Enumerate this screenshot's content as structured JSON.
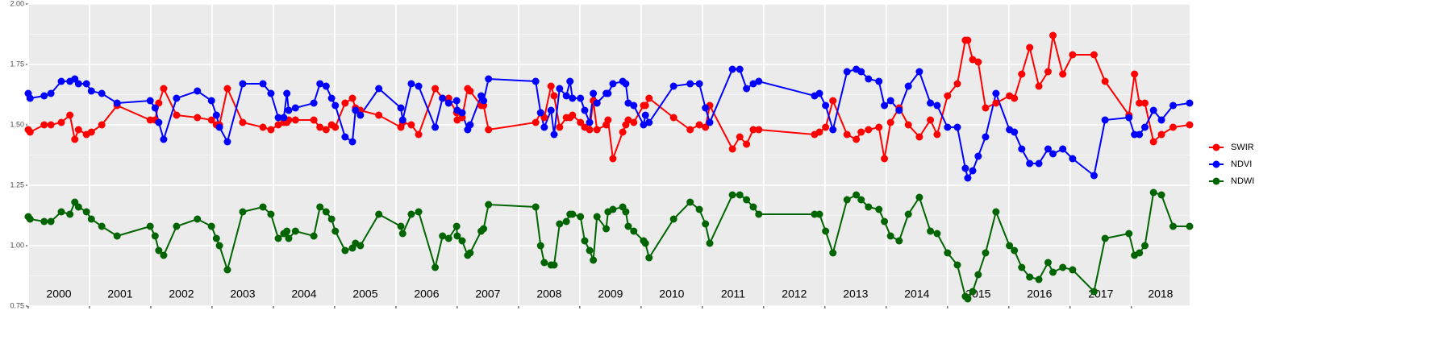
{
  "chart_data": {
    "type": "line",
    "x": [
      2000.0,
      2000.03,
      2000.26,
      2000.37,
      2000.54,
      2000.68,
      2000.76,
      2000.82,
      2000.95,
      2001.03,
      2001.2,
      2001.45,
      2001.99,
      2002.07,
      2002.13,
      2002.21,
      2002.42,
      2002.76,
      2002.99,
      2003.07,
      2003.12,
      2003.25,
      2003.5,
      2003.83,
      2003.96,
      2004.08,
      2004.17,
      2004.22,
      2004.25,
      2004.36,
      2004.66,
      2004.76,
      2004.86,
      2004.95,
      2005.01,
      2005.17,
      2005.29,
      2005.34,
      2005.42,
      2005.72,
      2006.08,
      2006.11,
      2006.25,
      2006.37,
      2006.64,
      2006.76,
      2006.86,
      2006.99,
      2007.0,
      2007.08,
      2007.17,
      2007.21,
      2007.39,
      2007.43,
      2007.51,
      2008.28,
      2008.36,
      2008.42,
      2008.53,
      2008.58,
      2008.67,
      2008.78,
      2008.84,
      2008.88,
      2009.01,
      2009.08,
      2009.16,
      2009.22,
      2009.28,
      2009.43,
      2009.46,
      2009.54,
      2009.7,
      2009.75,
      2009.79,
      2009.88,
      2010.04,
      2010.07,
      2010.13,
      2010.53,
      2010.8,
      2010.95,
      2011.05,
      2011.12,
      2011.49,
      2011.61,
      2011.72,
      2011.83,
      2011.92,
      2012.83,
      2012.91,
      2013.01,
      2013.13,
      2013.36,
      2013.51,
      2013.59,
      2013.71,
      2013.88,
      2013.97,
      2014.07,
      2014.21,
      2014.36,
      2014.54,
      2014.72,
      2014.83,
      2015.0,
      2015.16,
      2015.29,
      2015.33,
      2015.41,
      2015.5,
      2015.62,
      2015.79,
      2016.01,
      2016.09,
      2016.21,
      2016.34,
      2016.49,
      2016.64,
      2016.72,
      2016.88,
      2017.04,
      2017.39,
      2017.57,
      2017.96,
      2018.05,
      2018.13,
      2018.22,
      2018.36,
      2018.49,
      2018.68,
      2018.95
    ],
    "series": [
      {
        "name": "SWIR",
        "color": "#ff0000",
        "values": [
          1.48,
          1.47,
          1.5,
          1.5,
          1.51,
          1.54,
          1.44,
          1.48,
          1.46,
          1.47,
          1.5,
          1.58,
          1.52,
          1.52,
          1.59,
          1.65,
          1.54,
          1.53,
          1.52,
          1.5,
          1.5,
          1.65,
          1.51,
          1.49,
          1.48,
          1.5,
          1.51,
          1.51,
          1.52,
          1.52,
          1.52,
          1.49,
          1.48,
          1.5,
          1.49,
          1.59,
          1.61,
          1.57,
          1.56,
          1.54,
          1.49,
          1.51,
          1.5,
          1.46,
          1.65,
          1.61,
          1.61,
          1.55,
          1.52,
          1.53,
          1.65,
          1.64,
          1.58,
          1.58,
          1.48,
          1.51,
          1.55,
          1.53,
          1.66,
          1.62,
          1.49,
          1.53,
          1.53,
          1.54,
          1.51,
          1.49,
          1.48,
          1.6,
          1.48,
          1.5,
          1.52,
          1.36,
          1.47,
          1.5,
          1.52,
          1.51,
          1.58,
          1.58,
          1.61,
          1.53,
          1.48,
          1.5,
          1.49,
          1.58,
          1.4,
          1.45,
          1.42,
          1.48,
          1.48,
          1.46,
          1.47,
          1.49,
          1.6,
          1.46,
          1.44,
          1.47,
          1.48,
          1.49,
          1.36,
          1.51,
          1.57,
          1.5,
          1.45,
          1.52,
          1.46,
          1.62,
          1.67,
          1.85,
          1.85,
          1.77,
          1.76,
          1.57,
          1.59,
          1.62,
          1.61,
          1.71,
          1.82,
          1.66,
          1.72,
          1.87,
          1.71,
          1.79,
          1.79,
          1.68,
          1.54,
          1.71,
          1.59,
          1.59,
          1.43,
          1.46,
          1.49,
          1.5
        ]
      },
      {
        "name": "NDVI",
        "color": "#0000ff",
        "values": [
          1.63,
          1.61,
          1.62,
          1.63,
          1.68,
          1.68,
          1.69,
          1.67,
          1.67,
          1.64,
          1.63,
          1.59,
          1.6,
          1.57,
          1.51,
          1.44,
          1.61,
          1.64,
          1.6,
          1.54,
          1.49,
          1.43,
          1.67,
          1.67,
          1.63,
          1.53,
          1.53,
          1.63,
          1.56,
          1.57,
          1.59,
          1.67,
          1.66,
          1.61,
          1.58,
          1.45,
          1.43,
          1.56,
          1.54,
          1.65,
          1.57,
          1.52,
          1.67,
          1.66,
          1.49,
          1.61,
          1.59,
          1.6,
          1.56,
          1.55,
          1.48,
          1.5,
          1.62,
          1.6,
          1.69,
          1.68,
          1.55,
          1.49,
          1.56,
          1.46,
          1.65,
          1.62,
          1.68,
          1.61,
          1.61,
          1.56,
          1.51,
          1.63,
          1.59,
          1.63,
          1.63,
          1.67,
          1.68,
          1.67,
          1.59,
          1.58,
          1.5,
          1.54,
          1.51,
          1.66,
          1.67,
          1.67,
          1.57,
          1.51,
          1.73,
          1.73,
          1.65,
          1.67,
          1.68,
          1.62,
          1.63,
          1.58,
          1.48,
          1.72,
          1.73,
          1.72,
          1.69,
          1.68,
          1.58,
          1.6,
          1.56,
          1.66,
          1.72,
          1.59,
          1.58,
          1.49,
          1.49,
          1.32,
          1.28,
          1.31,
          1.37,
          1.45,
          1.63,
          1.48,
          1.47,
          1.4,
          1.34,
          1.34,
          1.4,
          1.38,
          1.4,
          1.36,
          1.29,
          1.52,
          1.53,
          1.46,
          1.46,
          1.49,
          1.56,
          1.52,
          1.58,
          1.59
        ]
      },
      {
        "name": "NDWI",
        "color": "#006400",
        "values": [
          1.12,
          1.11,
          1.1,
          1.1,
          1.14,
          1.13,
          1.18,
          1.16,
          1.14,
          1.11,
          1.08,
          1.04,
          1.08,
          1.04,
          0.98,
          0.96,
          1.08,
          1.11,
          1.08,
          1.03,
          1.0,
          0.9,
          1.14,
          1.16,
          1.13,
          1.03,
          1.05,
          1.06,
          1.03,
          1.06,
          1.04,
          1.16,
          1.14,
          1.11,
          1.06,
          0.98,
          0.99,
          1.01,
          1.0,
          1.13,
          1.08,
          1.05,
          1.13,
          1.14,
          0.91,
          1.04,
          1.03,
          1.08,
          1.04,
          1.02,
          0.96,
          0.97,
          1.06,
          1.07,
          1.17,
          1.16,
          1.0,
          0.93,
          0.92,
          0.92,
          1.09,
          1.1,
          1.13,
          1.13,
          1.12,
          1.02,
          0.98,
          0.94,
          1.12,
          1.07,
          1.14,
          1.15,
          1.16,
          1.14,
          1.08,
          1.06,
          1.02,
          1.01,
          0.95,
          1.11,
          1.18,
          1.15,
          1.09,
          1.01,
          1.21,
          1.21,
          1.19,
          1.16,
          1.13,
          1.13,
          1.13,
          1.06,
          0.97,
          1.19,
          1.21,
          1.19,
          1.16,
          1.15,
          1.1,
          1.04,
          1.02,
          1.13,
          1.2,
          1.06,
          1.05,
          0.97,
          0.92,
          0.79,
          0.78,
          0.81,
          0.88,
          0.97,
          1.14,
          1.0,
          0.98,
          0.91,
          0.87,
          0.86,
          0.93,
          0.89,
          0.91,
          0.9,
          0.81,
          1.03,
          1.05,
          0.96,
          0.97,
          1.0,
          1.22,
          1.21,
          1.08,
          1.08
        ]
      }
    ],
    "xlim": [
      2000,
      2018.95
    ],
    "xticks": [
      2000,
      2001,
      2002,
      2003,
      2004,
      2005,
      2006,
      2007,
      2008,
      2009,
      2010,
      2011,
      2012,
      2013,
      2014,
      2015,
      2016,
      2017,
      2018
    ],
    "ylim": [
      0.75,
      2.0
    ],
    "yticks": [
      {
        "value": 0.75,
        "label": "0.75"
      },
      {
        "value": 1.0,
        "label": "1.00"
      },
      {
        "value": 1.25,
        "label": "1.25"
      },
      {
        "value": 1.5,
        "label": "1.50"
      },
      {
        "value": 1.75,
        "label": "1.75"
      },
      {
        "value": 2.0,
        "label": "2.00"
      }
    ],
    "grid": true,
    "legend": "right"
  }
}
